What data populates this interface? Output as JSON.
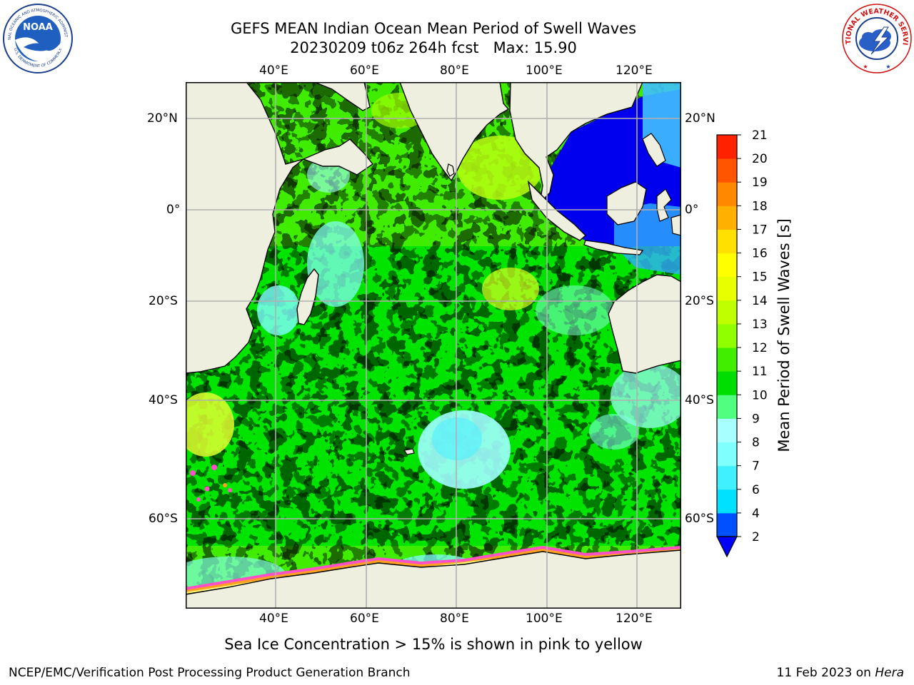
{
  "title": {
    "line1": "GEFS MEAN Indian Ocean Mean Period of Swell Waves",
    "line2": "20230209 t06z 264h fcst   Max: 15.90"
  },
  "logos": {
    "left_icon": "noaa-logo-icon",
    "left_arc_text": "NATIONAL OCEANIC AND ATMOSPHERIC ADMINISTRATION",
    "left_center_text": "NOAA",
    "left_bottom_text": "U.S. DEPARTMENT OF COMMERCE",
    "right_icon": "nws-logo-icon",
    "right_arc_text": "NATIONAL WEATHER SERVICE"
  },
  "map": {
    "lon_labels": [
      "40°E",
      "60°E",
      "80°E",
      "100°E",
      "120°E"
    ],
    "lat_labels": [
      "20°N",
      "0°",
      "20°S",
      "40°S",
      "60°S"
    ],
    "land_color": "#efefdf",
    "grid_color": "#b0b0b0",
    "ocean_colors": {
      "light_blue": "#a0ffff",
      "cyan": "#50f0ff",
      "light_green": "#50ff80",
      "green": "#00e400",
      "yellow_green": "#a0ff00",
      "yellow": "#eeff20",
      "blue": "#0040ff",
      "dark_blue": "#0000ee",
      "ice_pink": "#ff50c8",
      "ice_orange": "#ffa020",
      "ice_yellow": "#ffff80"
    }
  },
  "colorbar": {
    "title": "Mean Period of Swell Waves [s]",
    "ticks": [
      "2",
      "4",
      "6",
      "7",
      "8",
      "9",
      "10",
      "11",
      "12",
      "13",
      "14",
      "15",
      "16",
      "17",
      "18",
      "19",
      "20",
      "21"
    ],
    "colors": [
      "#0050ff",
      "#00e0ff",
      "#40f0ff",
      "#80ffff",
      "#a8ffff",
      "#50ff80",
      "#00dd00",
      "#40ee00",
      "#90ff00",
      "#c0ff00",
      "#e8ff00",
      "#ffff00",
      "#ffe000",
      "#ffb000",
      "#ff8800",
      "#ff5500",
      "#ff2200"
    ],
    "under_color": "#0000ff"
  },
  "note": "Sea Ice Concentration > 15% is shown in pink to yellow",
  "footer": {
    "credit": "NCEP/EMC/Verification Post Processing Product Generation Branch",
    "date": "11 Feb 2023 on",
    "host": "Hera"
  }
}
